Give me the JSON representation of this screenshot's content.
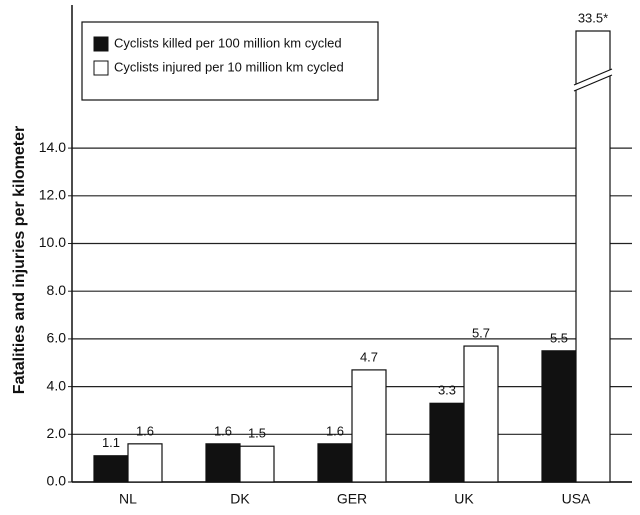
{
  "chart_data": {
    "type": "bar",
    "y_label": "Fatalities and injuries  per kilometer",
    "categories": [
      "NL",
      "DK",
      "GER",
      "UK",
      "USA"
    ],
    "series": [
      {
        "name": "Cyclists killed per 100 million km cycled",
        "color": "#111111",
        "values": [
          1.1,
          1.6,
          1.6,
          3.3,
          5.5
        ]
      },
      {
        "name": "Cyclists injured per 10 million km cycled",
        "color": "#ffffff",
        "values": [
          1.6,
          1.5,
          4.7,
          5.7,
          33.5
        ],
        "value_labels": [
          "1.6",
          "1.5",
          "4.7",
          "5.7",
          "33.5*"
        ]
      }
    ],
    "ylim": [
      0,
      20
    ],
    "yticks": [
      {
        "value": 0,
        "label": "0.0"
      },
      {
        "value": 2,
        "label": "2.0"
      },
      {
        "value": 4,
        "label": "4.0"
      },
      {
        "value": 6,
        "label": "6.0"
      },
      {
        "value": 8,
        "label": "8.0"
      },
      {
        "value": 10,
        "label": "10.0"
      },
      {
        "value": 12,
        "label": "12.0"
      },
      {
        "value": 14,
        "label": "14.0"
      }
    ],
    "grid": true,
    "legend": "upper left"
  }
}
